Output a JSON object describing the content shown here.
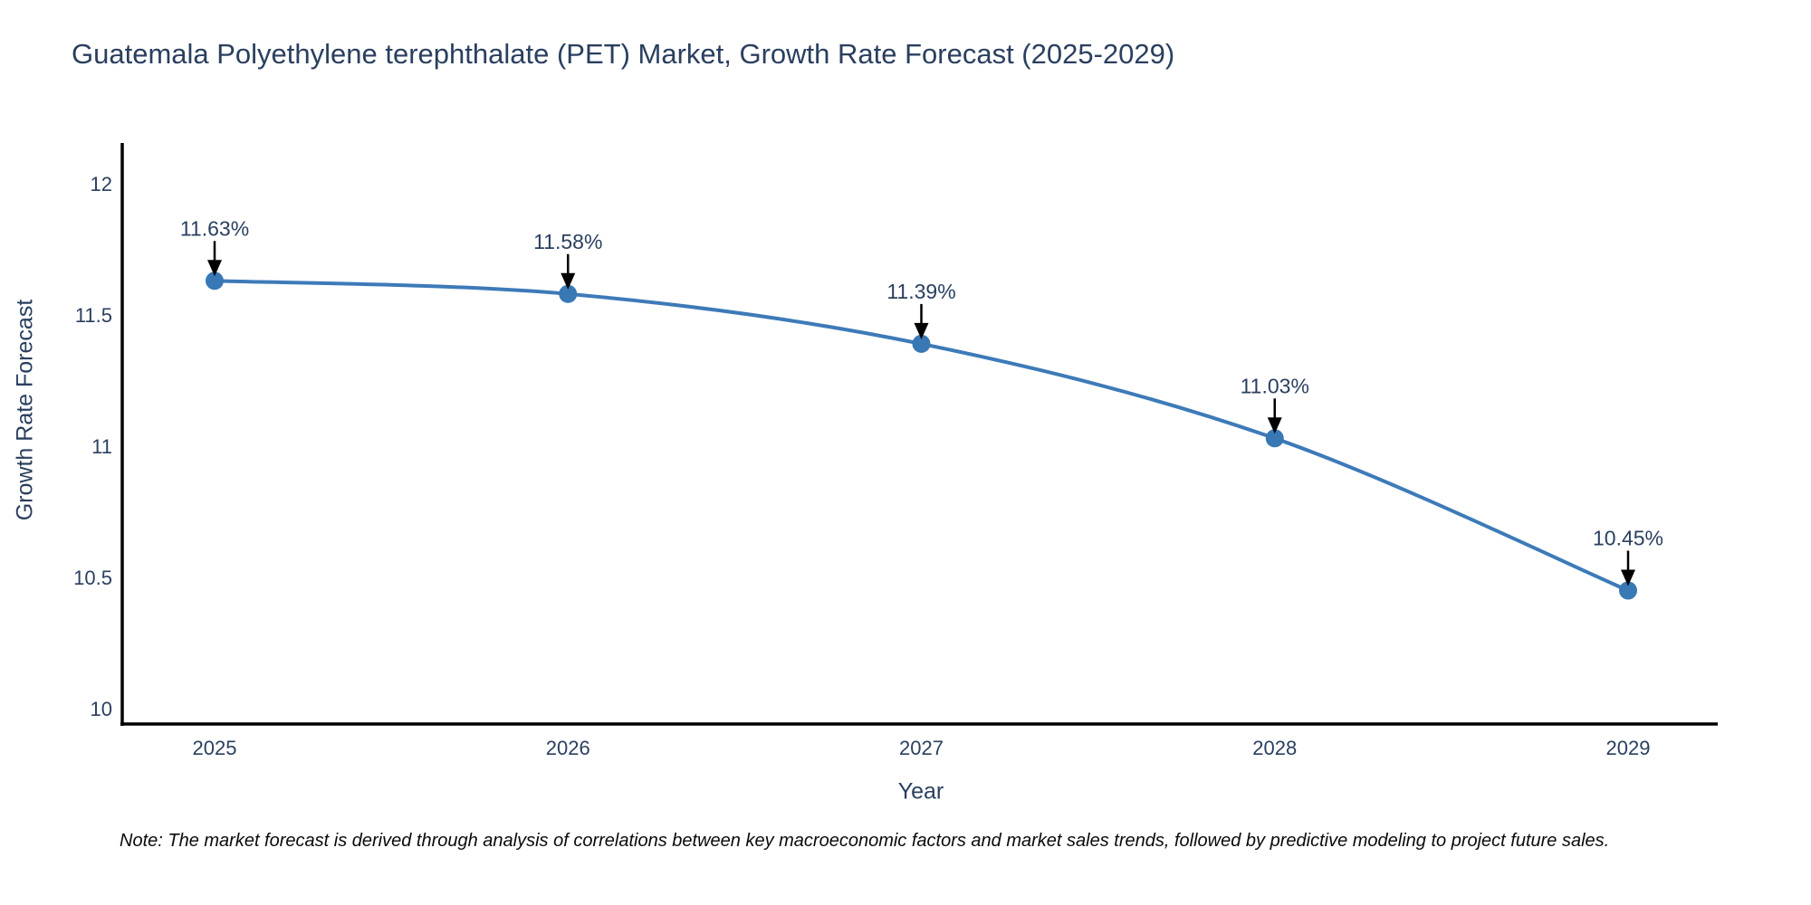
{
  "note": "Note: The market forecast is derived through analysis of correlations between key macroeconomic factors and market sales trends, followed by predictive modeling to project future sales.",
  "chart_data": {
    "type": "line",
    "title": "Guatemala Polyethylene terephthalate (PET) Market, Growth Rate Forecast (2025-2029)",
    "xlabel": "Year",
    "ylabel": "Growth Rate Forecast",
    "x": [
      2025,
      2026,
      2027,
      2028,
      2029
    ],
    "xticks": [
      "2025",
      "2026",
      "2027",
      "2028",
      "2029"
    ],
    "series": [
      {
        "name": "Growth Rate Forecast",
        "values": [
          11.63,
          11.58,
          11.39,
          11.03,
          10.45
        ]
      }
    ],
    "point_labels": [
      "11.63%",
      "11.58%",
      "11.39%",
      "11.03%",
      "10.45%"
    ],
    "ylim": [
      10,
      12
    ],
    "yticks": [
      10,
      10.5,
      11,
      11.5,
      12
    ],
    "grid": false,
    "legend_position": "none",
    "line_shape": "spline",
    "colors": {
      "line": "#3d7ab8",
      "marker": "#3878b4",
      "axis": "#000000",
      "text": "#2a3f5f",
      "annotation_arrow": "#000000",
      "background": "#ffffff"
    }
  }
}
